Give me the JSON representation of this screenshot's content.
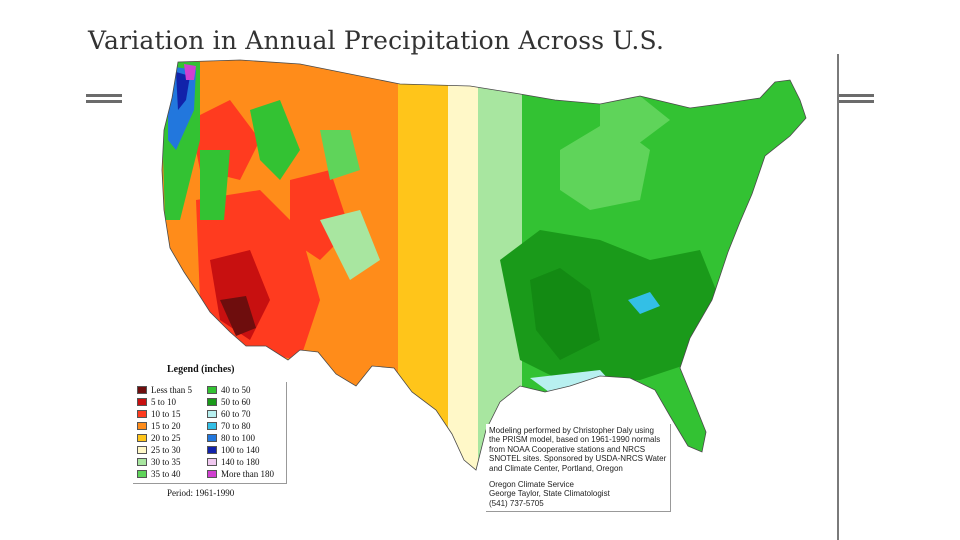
{
  "title": "Variation in Annual Precipitation Across U.S.",
  "legend": {
    "title": "Legend (inches)",
    "period": "Period: 1961-1990",
    "items": [
      {
        "label": "Less than 5",
        "color": "#6e0d0d"
      },
      {
        "label": "5 to 10",
        "color": "#c81010"
      },
      {
        "label": "10 to 15",
        "color": "#ff3b1f"
      },
      {
        "label": "15 to 20",
        "color": "#ff8c1a"
      },
      {
        "label": "20 to 25",
        "color": "#ffc51a"
      },
      {
        "label": "25 to 30",
        "color": "#fff8c8"
      },
      {
        "label": "30 to 35",
        "color": "#a8e6a0"
      },
      {
        "label": "35 to 40",
        "color": "#5fd45a"
      },
      {
        "label": "40 to 50",
        "color": "#33c233"
      },
      {
        "label": "50 to 60",
        "color": "#1a9a1a"
      },
      {
        "label": "60 to 70",
        "color": "#b8f0f0"
      },
      {
        "label": "70 to 80",
        "color": "#33bfe6"
      },
      {
        "label": "80 to 100",
        "color": "#2277dd"
      },
      {
        "label": "100 to 140",
        "color": "#1122aa"
      },
      {
        "label": "140 to 180",
        "color": "#f0c8f0"
      },
      {
        "label": "More than 180",
        "color": "#d040d0"
      }
    ]
  },
  "credits": {
    "paragraph1": "Modeling performed by Christopher Daly using the PRISM model, based on 1961-1990 normals from NOAA Cooperative stations and NRCS SNOTEL sites. Sponsored by USDA-NRCS Water and Climate Center, Portland, Oregon",
    "paragraph2_line1": "Oregon Climate Service",
    "paragraph2_line2": "George Taylor, State Climatologist",
    "paragraph2_line3": "(541) 737-5705"
  }
}
